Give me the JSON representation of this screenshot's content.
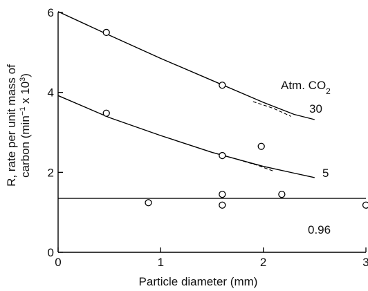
{
  "chart_data": {
    "type": "line",
    "xlabel": "Particle diameter (mm)",
    "ylabel_line1": "R, rate per unit mass of",
    "ylabel_line2_main": "carbon (min",
    "ylabel_line2_exp1": "−1",
    "ylabel_line2_mid": " x 10",
    "ylabel_line2_exp2": "3",
    "ylabel_line2_end": ")",
    "xlim": [
      0,
      3
    ],
    "ylim": [
      0,
      6
    ],
    "xticks": [
      "0",
      "1",
      "2",
      "3"
    ],
    "yticks": [
      "0",
      "2",
      "4",
      "6"
    ],
    "legend_title_main": "Atm. CO",
    "legend_title_sub": "2",
    "series": [
      {
        "name": "30",
        "points": [
          [
            0.47,
            5.5
          ],
          [
            1.6,
            4.18
          ]
        ],
        "curve": [
          [
            0,
            6.02
          ],
          [
            0.5,
            5.43
          ],
          [
            1.0,
            4.85
          ],
          [
            1.5,
            4.3
          ],
          [
            2.0,
            3.75
          ],
          [
            2.3,
            3.45
          ],
          [
            2.5,
            3.32
          ]
        ],
        "dashed": [
          [
            1.9,
            3.77
          ],
          [
            2.1,
            3.6
          ],
          [
            2.27,
            3.4
          ]
        ]
      },
      {
        "name": "5",
        "points": [
          [
            0.47,
            3.48
          ],
          [
            1.6,
            2.42
          ],
          [
            1.98,
            2.65
          ]
        ],
        "curve": [
          [
            0,
            3.92
          ],
          [
            0.5,
            3.37
          ],
          [
            1.0,
            2.92
          ],
          [
            1.5,
            2.5
          ],
          [
            2.0,
            2.15
          ],
          [
            2.3,
            1.98
          ],
          [
            2.5,
            1.87
          ]
        ],
        "dashed": [
          [
            1.7,
            2.36
          ],
          [
            1.95,
            2.17
          ],
          [
            2.1,
            2.03
          ]
        ]
      },
      {
        "name": "0.96",
        "points": [
          [
            0.88,
            1.24
          ],
          [
            1.6,
            1.45
          ],
          [
            1.6,
            1.18
          ],
          [
            2.18,
            1.45
          ],
          [
            3.0,
            1.18
          ]
        ],
        "curve": [
          [
            0,
            1.35
          ],
          [
            3.0,
            1.35
          ]
        ]
      }
    ]
  }
}
